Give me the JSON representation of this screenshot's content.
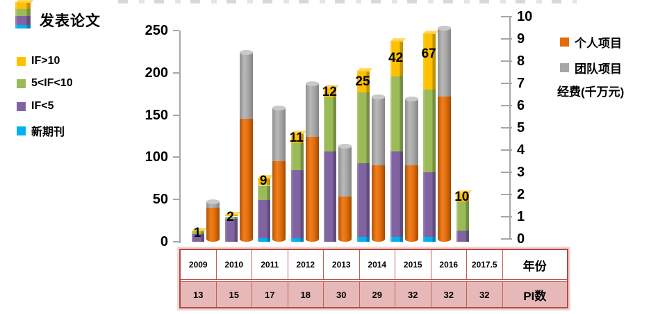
{
  "paper_legend": {
    "title": "发表论文",
    "items": [
      {
        "key": "if-gt-10",
        "label": "IF>10",
        "color": "#FFC000"
      },
      {
        "key": "if-5-10",
        "label": "5<IF<10",
        "color": "#9BBB59"
      },
      {
        "key": "if-lt-5",
        "label": "IF<5",
        "color": "#8064A2"
      },
      {
        "key": "new-journal",
        "label": "新期刊",
        "color": "#00B0F0"
      }
    ]
  },
  "funding_legend": {
    "items": [
      {
        "key": "personal-project",
        "label": "个人项目",
        "color": "#E36C09"
      },
      {
        "key": "team-project",
        "label": "团队项目",
        "color": "#A6A6A6"
      }
    ],
    "axis_note": "经费(千万元)"
  },
  "chart_data": {
    "type": "bar",
    "subtype": "stacked columns (papers, left axis) + stacked cylinders (funding, right axis)",
    "categories": [
      "2009",
      "2010",
      "2011",
      "2012",
      "2013",
      "2014",
      "2015",
      "2016",
      "2017.5"
    ],
    "left_axis": {
      "title": "发表论文",
      "range": [
        0,
        250
      ],
      "tick_step": 50,
      "ticks": [
        250,
        200,
        150,
        100,
        50,
        0
      ]
    },
    "right_axis": {
      "title": "经费(千万元)",
      "range": [
        0,
        10
      ],
      "tick_step": 1,
      "ticks": [
        10,
        9,
        8,
        7,
        6,
        5,
        4,
        3,
        2,
        1,
        0
      ]
    },
    "grid": "off",
    "paper_series": [
      {
        "key": "new-journal",
        "name": "新期刊",
        "color": "#00B0F0",
        "values": [
          0,
          0,
          4,
          4,
          0,
          6,
          6,
          6,
          0
        ]
      },
      {
        "key": "if-lt-5",
        "name": "IF<5",
        "color": "#8064A2",
        "values": [
          9,
          27,
          45,
          81,
          107,
          87,
          101,
          76,
          13
        ]
      },
      {
        "key": "if-5-10",
        "name": "5<IF<10",
        "color": "#9BBB59",
        "values": [
          3,
          3,
          18,
          32,
          64,
          84,
          89,
          98,
          35
        ]
      },
      {
        "key": "if-gt-10",
        "name": "IF>10",
        "color": "#FFC000",
        "values": [
          1,
          2,
          9,
          11,
          12,
          25,
          42,
          67,
          10
        ],
        "data_labels": [
          1,
          2,
          9,
          11,
          12,
          25,
          42,
          67,
          10
        ]
      }
    ],
    "funding_series": [
      {
        "key": "personal-project",
        "name": "个人项目",
        "color": "#E36C09",
        "values": [
          1.4,
          5.4,
          3.5,
          4.6,
          1.9,
          3.3,
          3.3,
          6.4,
          0
        ]
      },
      {
        "key": "team-project",
        "name": "团队项目",
        "color": "#A6A6A6",
        "values": [
          0.3,
          3.0,
          2.4,
          2.4,
          2.3,
          3.1,
          3.0,
          3.1,
          0
        ]
      }
    ]
  },
  "table": {
    "year_header": "年份",
    "pi_header": "PI数",
    "years": [
      "2009",
      "2010",
      "2011",
      "2012",
      "2013",
      "2014",
      "2015",
      "2016",
      "2017.5"
    ],
    "pi_counts": [
      "13",
      "15",
      "17",
      "18",
      "30",
      "29",
      "32",
      "32",
      "32"
    ]
  }
}
